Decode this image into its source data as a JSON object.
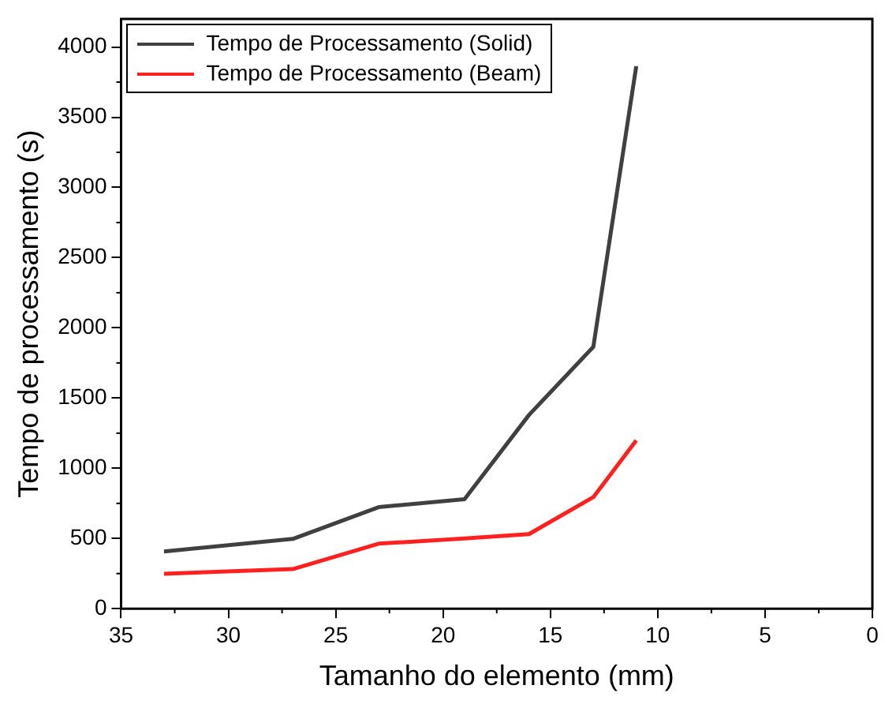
{
  "chart_data": {
    "type": "line",
    "xlabel": "Tamanho do elemento (mm)",
    "ylabel": "Tempo de processamento (s)",
    "x": [
      33,
      27,
      23,
      19,
      16,
      13,
      11
    ],
    "series": [
      {
        "name": "Tempo de Processamento (Solid)",
        "color": "#404040",
        "values": [
          407,
          497,
          723,
          780,
          1379,
          1864,
          3864
        ]
      },
      {
        "name": "Tempo de Processamento (Beam)",
        "color": "#ff2020",
        "values": [
          249,
          282,
          463,
          500,
          531,
          794,
          1198
        ]
      }
    ],
    "xlim": [
      35,
      0
    ],
    "xticks": [
      35,
      30,
      25,
      20,
      15,
      10,
      5,
      0
    ],
    "ylim": [
      0,
      4200
    ],
    "yticks": [
      0,
      500,
      1000,
      1500,
      2000,
      2500,
      3000,
      3500,
      4000
    ],
    "grid": false,
    "legend": "top left",
    "marker": "none",
    "line_style": "solid"
  }
}
